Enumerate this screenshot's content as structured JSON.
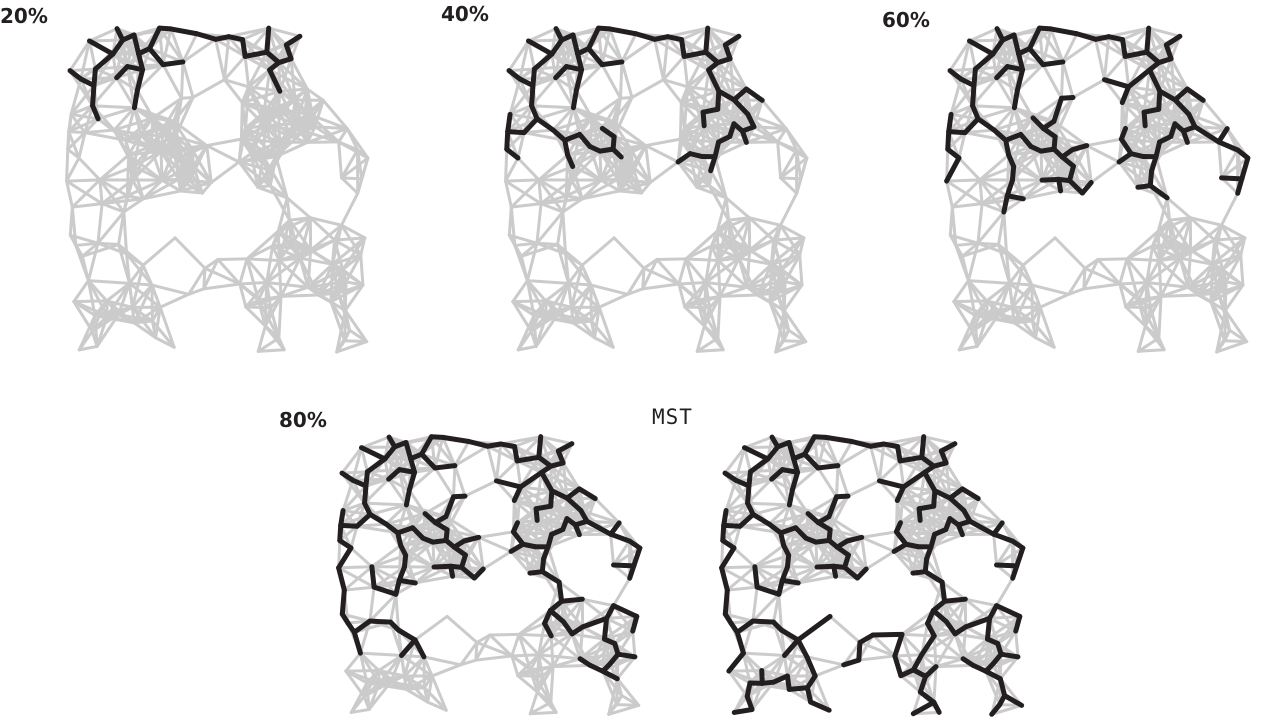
{
  "figure": {
    "panels": [
      {
        "label": "20%",
        "mst_fraction": 0.2
      },
      {
        "label": "40%",
        "mst_fraction": 0.4
      },
      {
        "label": "60%",
        "mst_fraction": 0.6
      },
      {
        "label": "80%",
        "mst_fraction": 0.8
      },
      {
        "label": "MST",
        "mst_fraction": 1.0
      }
    ],
    "colors": {
      "graph_edge": "#cbcbcb",
      "tree_edge": "#231f20",
      "background": "#ffffff"
    }
  }
}
